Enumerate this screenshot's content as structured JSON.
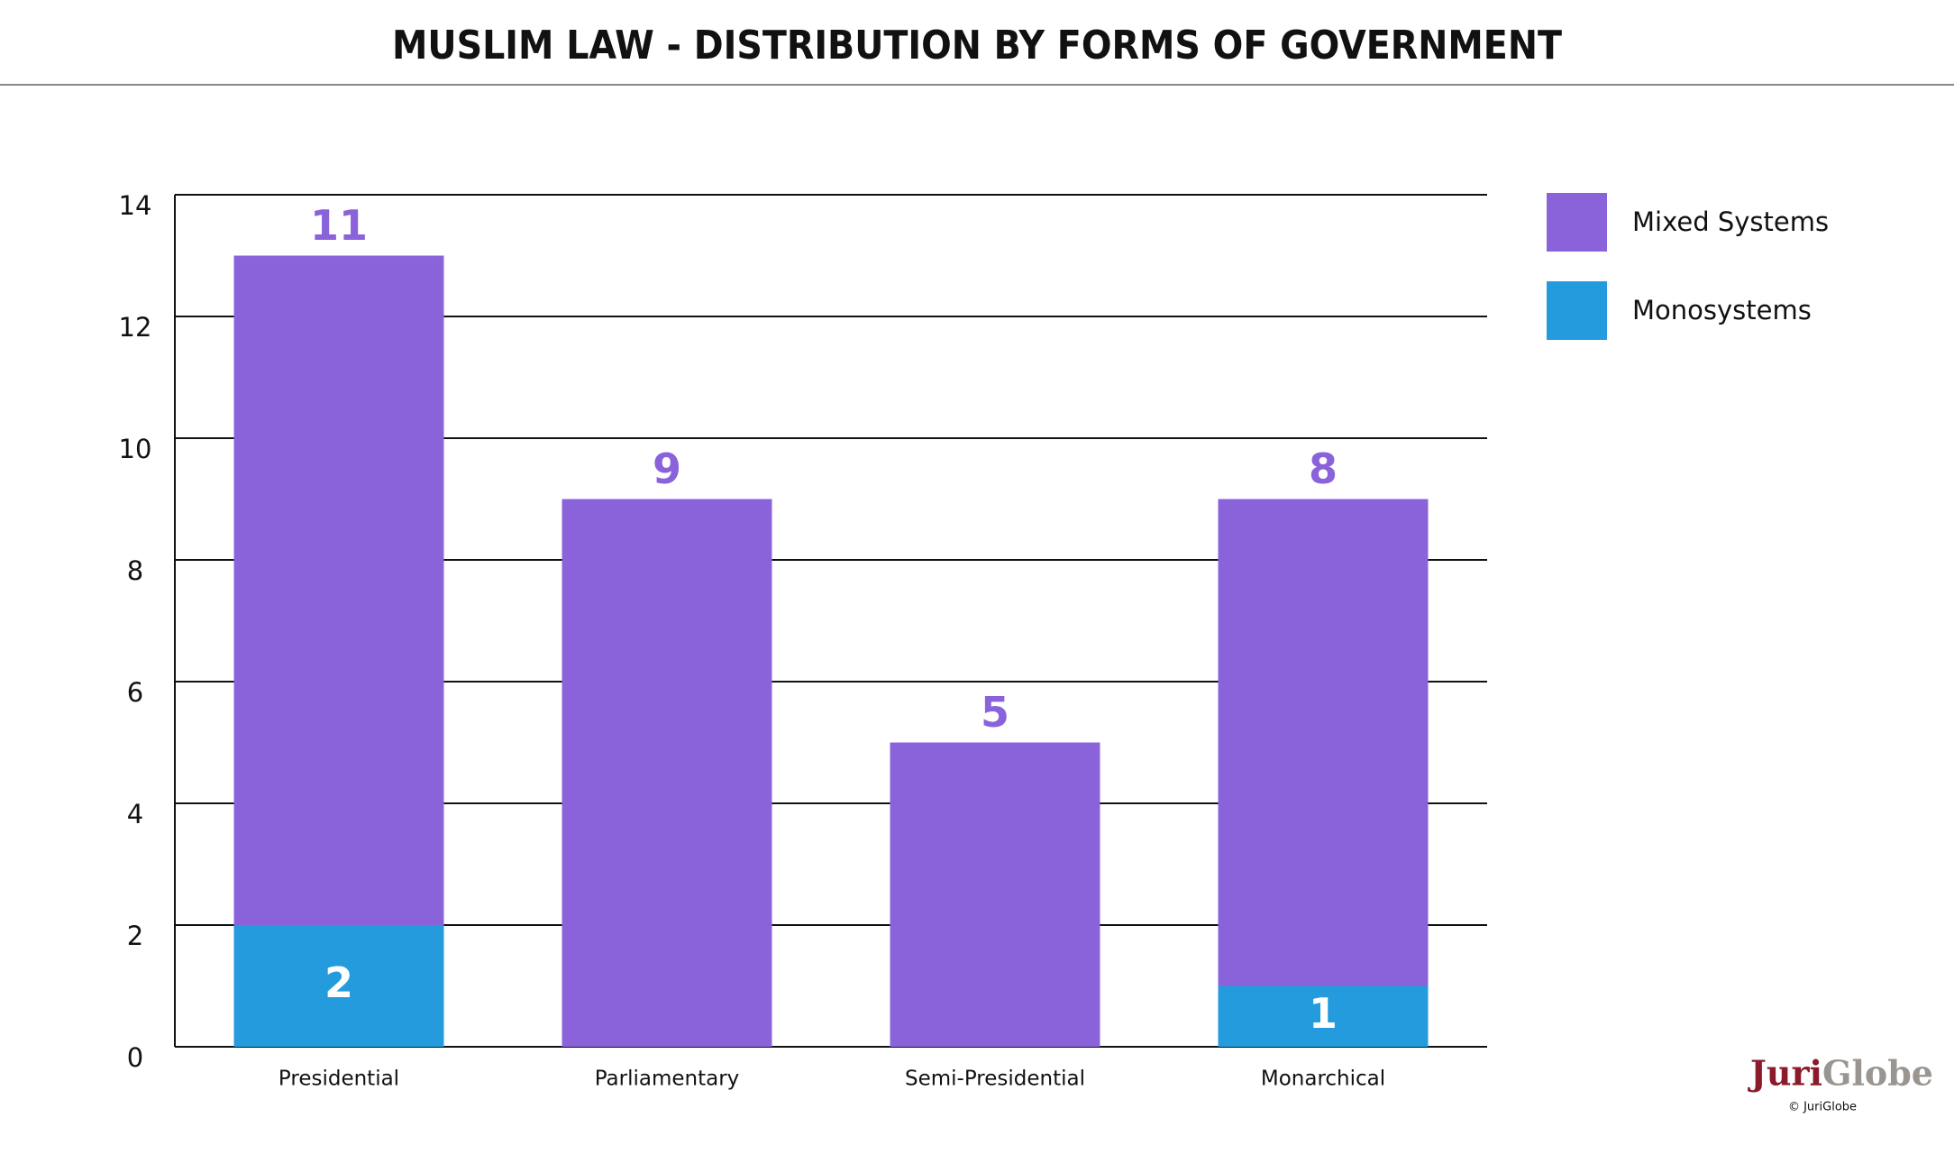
{
  "chart_data": {
    "type": "stacked_bar",
    "title": "MUSLIM LAW - DISTRIBUTION BY FORMS OF GOVERNMENT",
    "categories": [
      "Presidential",
      "Parliamentary",
      "Semi-Presidential",
      "Monarchical"
    ],
    "series": [
      {
        "name": "Monosystems",
        "color": "#239bdd",
        "values": [
          2,
          0,
          0,
          1
        ]
      },
      {
        "name": "Mixed Systems",
        "color": "#8a63db",
        "values": [
          11,
          9,
          5,
          8
        ]
      }
    ],
    "ylim": [
      0,
      14
    ],
    "yticks": [
      0,
      2,
      4,
      6,
      8,
      10,
      12,
      14
    ],
    "grid": true,
    "legend": "right"
  },
  "footer": {
    "brand_first": "Juri",
    "brand_second": "Globe",
    "copyright": "© JuriGlobe"
  }
}
